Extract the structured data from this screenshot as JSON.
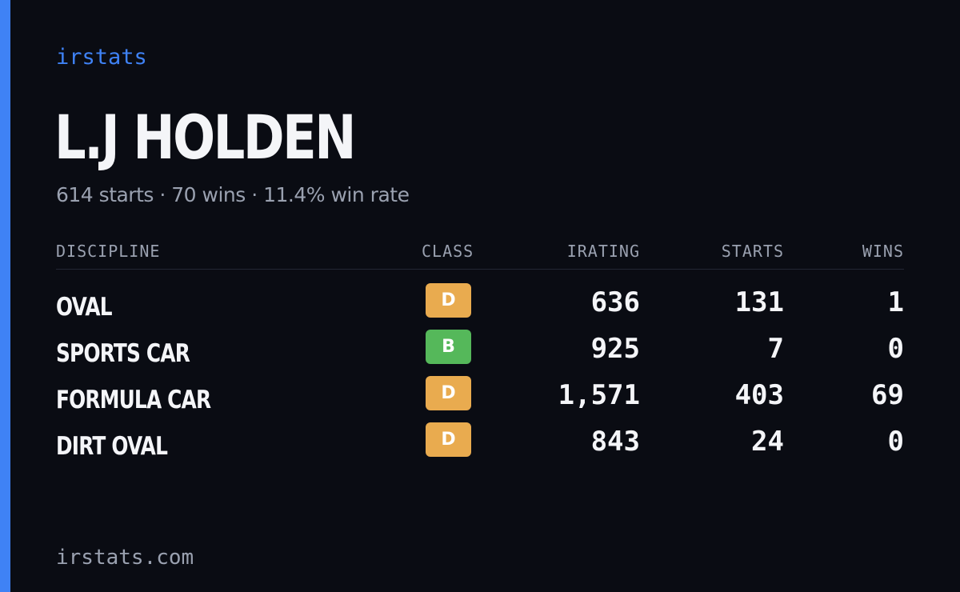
{
  "brand": "irstats",
  "player": {
    "name": "L.J HOLDEN",
    "summary": "614 starts · 70 wins · 11.4% win rate"
  },
  "table": {
    "headers": {
      "discipline": "DISCIPLINE",
      "class": "CLASS",
      "irating": "IRATING",
      "starts": "STARTS",
      "wins": "WINS"
    },
    "rows": [
      {
        "discipline": "OVAL",
        "class": "D",
        "irating": "636",
        "starts": "131",
        "wins": "1"
      },
      {
        "discipline": "SPORTS CAR",
        "class": "B",
        "irating": "925",
        "starts": "7",
        "wins": "0"
      },
      {
        "discipline": "FORMULA CAR",
        "class": "D",
        "irating": "1,571",
        "starts": "403",
        "wins": "69"
      },
      {
        "discipline": "DIRT OVAL",
        "class": "D",
        "irating": "843",
        "starts": "24",
        "wins": "0"
      }
    ]
  },
  "class_colors": {
    "D": "#e9ab4f",
    "B": "#55b85a"
  },
  "accent_color": "#3f82f5",
  "footer": "irstats.com"
}
